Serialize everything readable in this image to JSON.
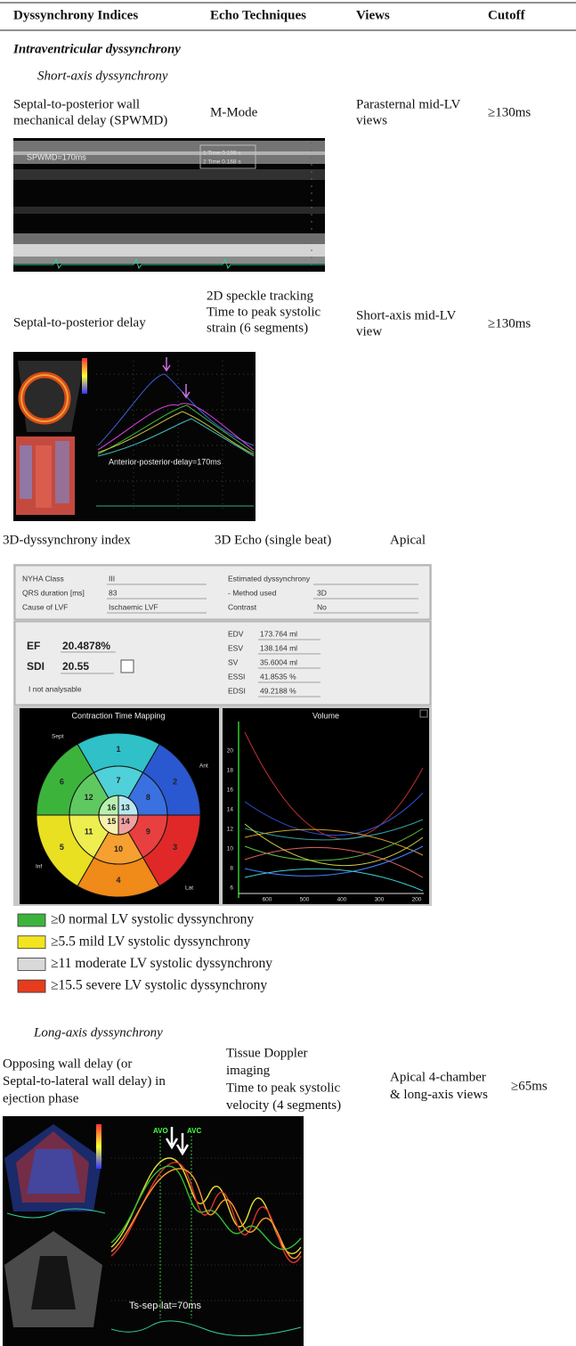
{
  "table": {
    "headers": [
      "Dyssynchrony Indices",
      "Echo Techniques",
      "Views",
      "Cutoff"
    ],
    "section": "Intraventricular dyssynchrony",
    "subsections": [
      "Short-axis dyssynchrony",
      "Long-axis dyssynchrony"
    ],
    "rows": [
      {
        "index": [
          "Septal-to-posterior wall",
          "mechanical delay (SPWMD)"
        ],
        "technique": [
          "M-Mode"
        ],
        "view": [
          "Parasternal mid-LV",
          "views"
        ],
        "cutoff": "≥130ms"
      },
      {
        "index": [
          "Septal-to-posterior delay"
        ],
        "technique": [
          "2D speckle tracking",
          "Time to peak systolic",
          "strain (6 segments)"
        ],
        "view": [
          "Short-axis mid-LV",
          "view"
        ],
        "cutoff": "≥130ms"
      },
      {
        "index": [
          "3D-dyssynchrony index"
        ],
        "technique": [
          "3D Echo (single beat)"
        ],
        "view": [
          "Apical"
        ]
      },
      {
        "index": [
          "Opposing wall delay (or",
          "Septal-to-lateral wall delay) in",
          "ejection phase"
        ],
        "technique": [
          "Tissue Doppler",
          "imaging",
          "Time to peak systolic",
          "velocity (4 segments)"
        ],
        "view": [
          "Apical 4-chamber",
          "& long-axis views"
        ],
        "cutoff": "≥65ms"
      }
    ]
  },
  "figures": {
    "mmode": {
      "label": "SPWMD=170ms",
      "readouts": [
        "1 Time 0.198 s",
        "2 Time 0.168 s"
      ]
    },
    "speckle": {
      "label": "Anterior-posterior-delay=170ms"
    },
    "echo3d": {
      "form": [
        [
          "NYHA Class",
          "III"
        ],
        [
          "QRS duration [ms]",
          "83"
        ],
        [
          "Cause of LVF",
          "Ischaemic LVF"
        ],
        [
          "Estimated dyssynchrony",
          ""
        ],
        [
          "- Method used",
          "3D"
        ],
        [
          "Contrast",
          "No"
        ]
      ],
      "ef": [
        "EF",
        "20.4878%"
      ],
      "sdi": [
        "SDI",
        "20.55"
      ],
      "note": "I not analysable",
      "volumes": [
        [
          "EDV",
          "173.764 ml"
        ],
        [
          "ESV",
          "138.164 ml"
        ],
        [
          "SV",
          "35.6004 ml"
        ],
        [
          "ESSI",
          "41.8535 %"
        ],
        [
          "EDSI",
          "49.2188 %"
        ]
      ],
      "bullseye": {
        "title": "Contraction Time Mapping",
        "segments": [
          "1",
          "2",
          "3",
          "4",
          "5",
          "6",
          "7",
          "8",
          "9",
          "10",
          "11",
          "12",
          "13",
          "14",
          "15",
          "16"
        ],
        "regions": [
          "Sept",
          "Ant",
          "Lat",
          "Inf"
        ]
      },
      "volume_plot": {
        "title": "Volume",
        "yticks": [
          "20",
          "18",
          "16",
          "14",
          "12",
          "10",
          "8",
          "6"
        ],
        "xticks": [
          "600",
          "500",
          "400",
          "300",
          "200"
        ]
      }
    },
    "tdi": {
      "label": "Ts-sep-lat=70ms",
      "events": [
        "AVO",
        "AVC"
      ]
    }
  },
  "legend": [
    {
      "label": "≥0 normal LV systolic dyssynchrony",
      "color": "#3cb43c"
    },
    {
      "label": "≥5.5 mild LV systolic dyssynchrony",
      "color": "#f2e41e"
    },
    {
      "label": "≥11 moderate LV systolic dyssynchrony",
      "color": "#d9d9d9"
    },
    {
      "label": "≥15.5 severe LV systolic dyssynchrony",
      "color": "#e63c1e"
    }
  ]
}
